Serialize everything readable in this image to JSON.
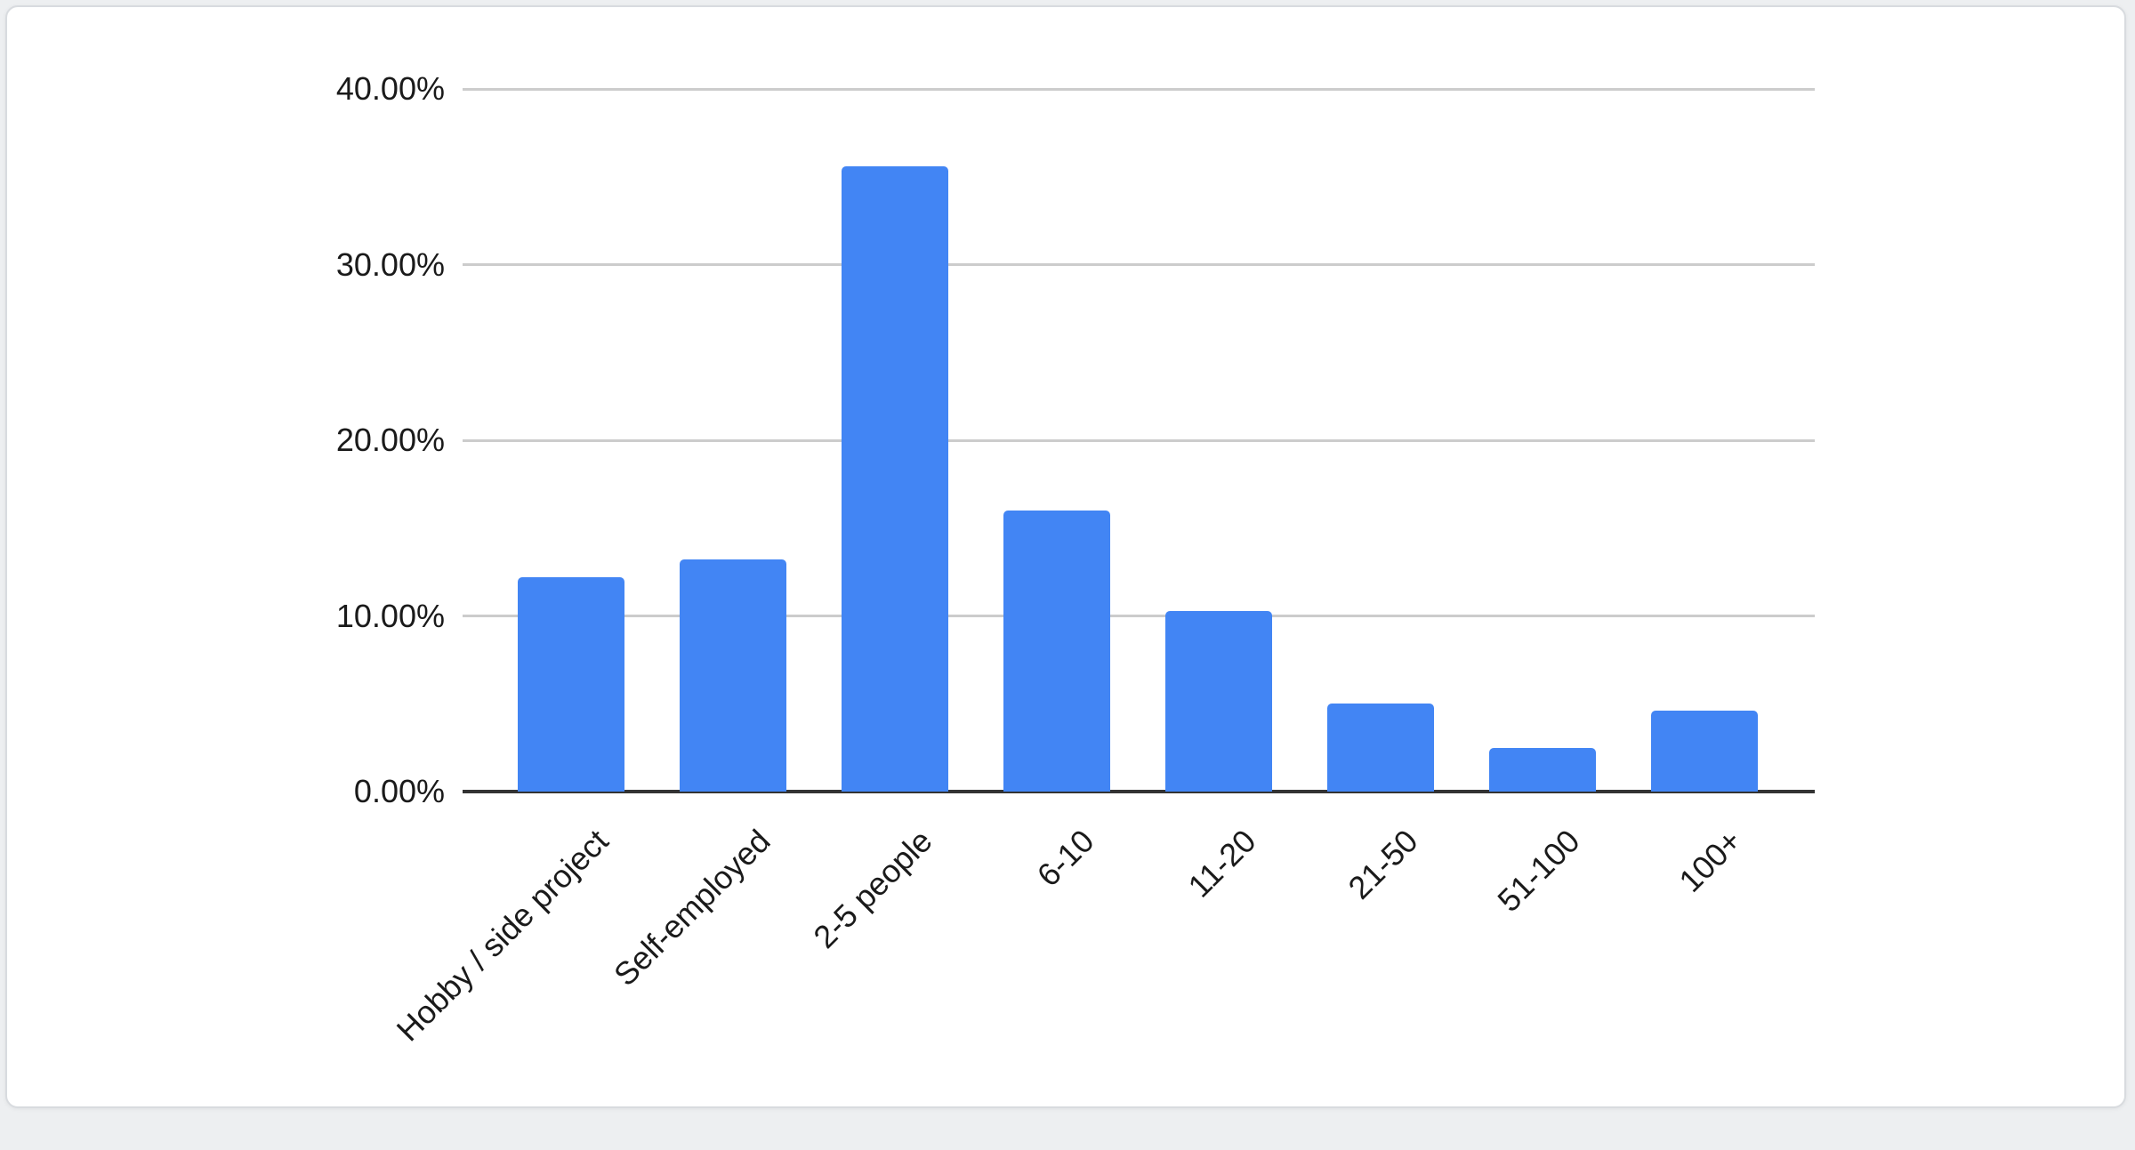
{
  "page": {
    "background_color": "#edeff1"
  },
  "card": {
    "background_color": "#ffffff",
    "border_color": "#d8dbdf"
  },
  "chart_data": {
    "type": "bar",
    "title": "",
    "subtitle": "",
    "xlabel": "",
    "ylabel": "",
    "categories": [
      "Hobby / side project",
      "Self-employed",
      "2-5 people",
      "6-10",
      "11-20",
      "21-50",
      "51-100",
      "100+"
    ],
    "values": [
      12.2,
      13.2,
      35.6,
      16.0,
      10.3,
      5.0,
      2.5,
      4.6
    ],
    "value_unit": "%",
    "ylim": [
      0,
      40
    ],
    "y_ticks": [
      {
        "value": 40,
        "label": "40.00%"
      },
      {
        "value": 30,
        "label": "30.00%"
      },
      {
        "value": 20,
        "label": "20.00%"
      },
      {
        "value": 10,
        "label": "10.00%"
      },
      {
        "value": 0,
        "label": "0.00%"
      }
    ],
    "grid": true,
    "legend_position": "none",
    "x_label_rotation_deg": 45,
    "bar_color": "#4285f4",
    "gridline_color": "#cccccc",
    "axis_line_color": "#333333",
    "tick_label_color": "#1a1a1a"
  }
}
